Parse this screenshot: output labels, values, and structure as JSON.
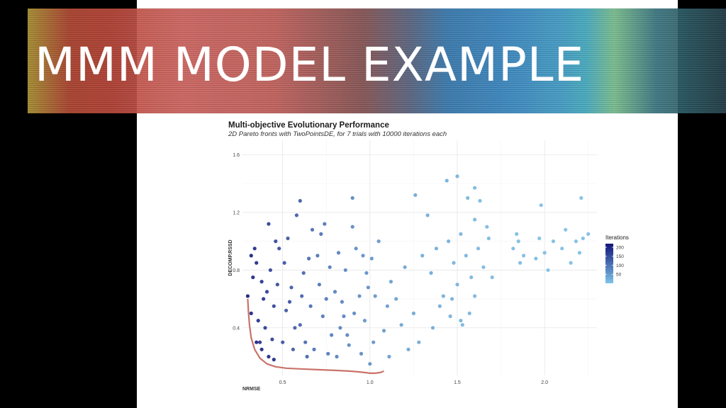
{
  "slide": {
    "title": "MMM MODEL EXAMPLE"
  },
  "colors": {
    "iteration_low": "#7fc4e8",
    "iteration_high": "#12157a",
    "pareto_front": "#c9736a"
  },
  "chart_data": {
    "type": "scatter",
    "title": "Multi-objective Evolutionary Performance",
    "subtitle": "2D Pareto fronts with TwoPointsDE, for 7 trials with 10000 iterations each",
    "xlabel": "NRMSE",
    "ylabel": "DECOMP.RSSD",
    "xlim": [
      0.27,
      2.3
    ],
    "ylim": [
      0.07,
      1.7
    ],
    "x_ticks": [
      0.5,
      1.0,
      1.5,
      2.0
    ],
    "x_tick_labels": [
      "0.5",
      "1.0",
      "1.5",
      "2.0"
    ],
    "y_ticks": [
      0.4,
      0.8,
      1.2,
      1.6
    ],
    "y_tick_labels": [
      "0.4",
      "0.8",
      "1.2",
      "1.6"
    ],
    "grid": true,
    "legend": {
      "title": "Iterations",
      "position": "right",
      "scale_min": 0,
      "scale_max": 220,
      "ticks": [
        200,
        150,
        100,
        50
      ]
    },
    "series": [
      {
        "x": [
          0.3,
          0.32,
          0.35,
          0.38,
          0.4,
          0.42,
          0.45,
          0.48,
          0.5,
          0.55,
          0.58,
          0.6,
          0.65,
          0.68,
          0.72,
          0.75,
          0.78,
          0.82,
          0.85,
          0.9,
          0.95,
          0.98,
          1.02,
          1.05,
          1.1,
          0.33,
          0.36,
          0.44,
          0.52,
          0.62,
          0.7,
          0.8,
          0.88,
          0.97,
          1.08,
          1.15,
          1.2,
          1.25,
          1.28,
          0.34,
          0.39,
          0.47,
          0.57,
          0.66,
          0.76,
          0.86,
          0.94,
          1.0,
          1.12,
          1.22,
          0.37,
          0.43,
          0.53,
          0.63,
          0.73,
          0.83,
          0.92,
          1.03,
          1.18,
          0.41,
          0.51,
          0.61,
          0.71,
          0.81,
          0.91,
          1.01,
          1.11,
          0.46,
          0.56,
          0.67,
          0.77,
          0.87,
          0.99,
          0.54,
          0.64,
          0.74,
          0.84,
          0.96,
          0.6,
          0.9,
          0.32,
          0.35,
          0.38,
          0.42,
          0.45
        ],
        "y": [
          0.62,
          0.5,
          0.85,
          0.72,
          0.4,
          1.12,
          0.55,
          0.95,
          0.3,
          0.68,
          1.18,
          0.42,
          0.88,
          0.25,
          1.05,
          0.6,
          0.35,
          0.92,
          0.48,
          1.1,
          0.22,
          0.78,
          0.3,
          1.0,
          0.55,
          0.75,
          0.45,
          0.32,
          0.52,
          0.78,
          0.9,
          0.65,
          0.28,
          0.45,
          0.38,
          0.6,
          0.82,
          0.5,
          0.3,
          0.95,
          0.6,
          0.7,
          0.4,
          0.55,
          0.22,
          0.8,
          0.62,
          0.15,
          0.72,
          0.25,
          0.3,
          0.8,
          1.02,
          0.3,
          0.48,
          0.4,
          0.95,
          0.62,
          0.42,
          0.65,
          0.85,
          0.62,
          0.7,
          0.2,
          0.5,
          0.88,
          0.2,
          1.0,
          0.25,
          1.08,
          0.82,
          0.35,
          0.68,
          0.58,
          0.2,
          1.12,
          0.58,
          0.9,
          1.28,
          1.3,
          0.9,
          0.3,
          0.25,
          0.2,
          0.18
        ],
        "iterations": [
          220,
          210,
          200,
          190,
          180,
          175,
          170,
          160,
          150,
          140,
          135,
          130,
          120,
          115,
          110,
          100,
          95,
          90,
          85,
          80,
          75,
          70,
          65,
          60,
          55,
          205,
          195,
          172,
          145,
          125,
          105,
          92,
          78,
          66,
          58,
          50,
          45,
          40,
          38,
          200,
          188,
          162,
          138,
          118,
          98,
          82,
          72,
          68,
          52,
          42,
          192,
          168,
          142,
          122,
          102,
          88,
          76,
          62,
          48,
          178,
          148,
          128,
          108,
          90,
          78,
          64,
          54,
          165,
          140,
          118,
          96,
          84,
          70,
          150,
          126,
          104,
          88,
          72,
          135,
          80,
          215,
          212,
          208,
          204,
          200
        ]
      },
      {
        "x": [
          1.35,
          1.38,
          1.42,
          1.45,
          1.48,
          1.5,
          1.52,
          1.55,
          1.58,
          1.6,
          1.62,
          1.65,
          1.68,
          1.7,
          1.4,
          1.47,
          1.53,
          1.57,
          1.63,
          1.67,
          1.44,
          1.5,
          1.56,
          1.36,
          1.6,
          1.82,
          1.84,
          1.86,
          1.88,
          1.85,
          1.95,
          1.97,
          2.0,
          2.02,
          2.05,
          2.1,
          2.12,
          2.15,
          2.18,
          2.2,
          2.22,
          2.25,
          1.46,
          1.52,
          1.6,
          1.98,
          2.21,
          1.26,
          1.3,
          1.33
        ],
        "y": [
          0.78,
          0.95,
          0.62,
          1.0,
          0.85,
          0.7,
          1.05,
          0.9,
          0.75,
          1.15,
          0.95,
          0.82,
          1.02,
          0.75,
          0.55,
          0.6,
          0.42,
          0.5,
          1.28,
          1.1,
          1.42,
          1.45,
          1.3,
          0.4,
          1.37,
          0.95,
          1.05,
          0.85,
          0.9,
          1.0,
          0.88,
          1.02,
          0.92,
          0.8,
          1.0,
          0.95,
          1.08,
          0.85,
          1.0,
          0.92,
          1.02,
          1.05,
          0.48,
          0.45,
          0.62,
          1.25,
          1.3,
          1.32,
          0.9,
          1.18
        ],
        "iterations": [
          40,
          35,
          32,
          30,
          28,
          26,
          24,
          22,
          22,
          20,
          20,
          18,
          18,
          16,
          34,
          28,
          24,
          22,
          18,
          16,
          30,
          26,
          22,
          36,
          20,
          14,
          12,
          14,
          12,
          13,
          12,
          10,
          12,
          10,
          11,
          10,
          9,
          10,
          9,
          10,
          8,
          9,
          28,
          24,
          20,
          10,
          9,
          38,
          36,
          34
        ]
      }
    ],
    "pareto_front": {
      "x": [
        0.3,
        0.305,
        0.31,
        0.32,
        0.34,
        0.37,
        0.41,
        0.46,
        0.52,
        0.6,
        0.7,
        0.8,
        0.88,
        0.93,
        0.97,
        1.0,
        1.03,
        1.06,
        1.08
      ],
      "y": [
        0.6,
        0.5,
        0.42,
        0.33,
        0.25,
        0.19,
        0.15,
        0.13,
        0.12,
        0.115,
        0.11,
        0.105,
        0.1,
        0.095,
        0.09,
        0.085,
        0.085,
        0.09,
        0.1
      ]
    }
  }
}
